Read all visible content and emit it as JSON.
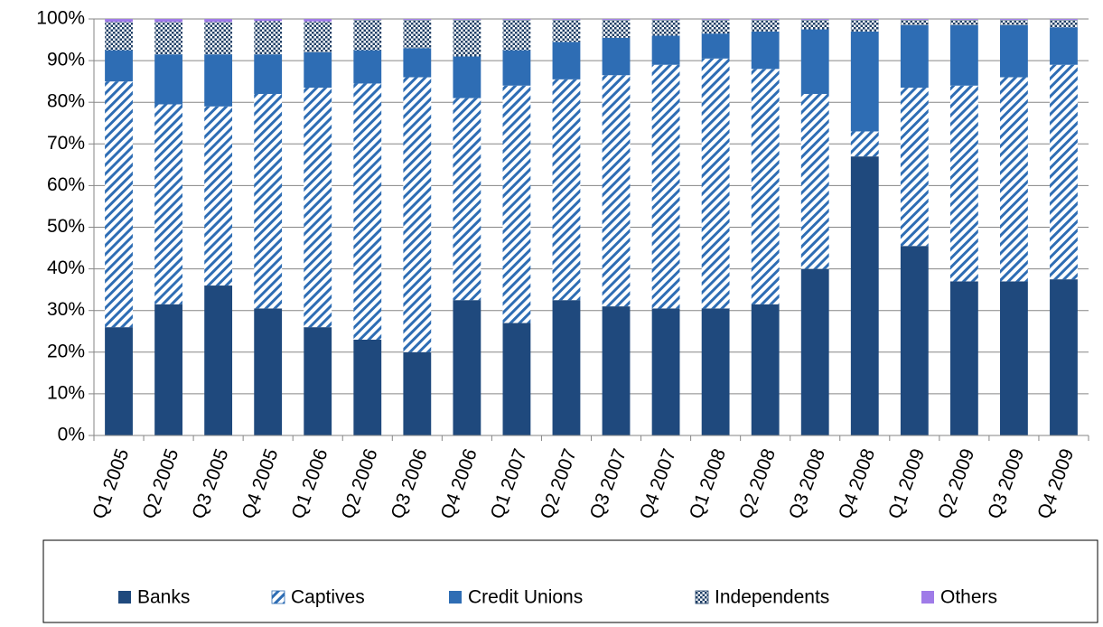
{
  "chart_data": {
    "type": "stacked_bar_percent",
    "categories": [
      "Q1 2005",
      "Q2 2005",
      "Q3 2005",
      "Q4 2005",
      "Q1 2006",
      "Q2 2006",
      "Q3 2006",
      "Q4 2006",
      "Q1 2007",
      "Q2 2007",
      "Q3 2007",
      "Q4 2007",
      "Q1 2008",
      "Q2 2008",
      "Q3 2008",
      "Q4 2008",
      "Q1 2009",
      "Q2 2009",
      "Q3 2009",
      "Q4 2009"
    ],
    "series": [
      {
        "name": "Banks",
        "color": "#1f497d",
        "pattern": "solid",
        "values": [
          26,
          31.5,
          36,
          30.5,
          26,
          23,
          20,
          32.5,
          27,
          32.5,
          31,
          30.5,
          30.5,
          31.5,
          40,
          67,
          45.5,
          37,
          37,
          37.5
        ]
      },
      {
        "name": "Captives",
        "color": "#2e6db4",
        "pattern": "diagonal",
        "values": [
          59,
          48,
          43,
          51.5,
          57.5,
          61.5,
          66,
          48.5,
          57,
          53,
          55.5,
          58.5,
          60,
          56.5,
          42,
          6,
          38,
          47,
          49,
          51.5
        ]
      },
      {
        "name": "Credit Unions",
        "color": "#2e6db4",
        "pattern": "solid",
        "values": [
          7.5,
          12,
          12.5,
          9.5,
          8.5,
          8,
          7,
          10,
          8.5,
          9,
          9,
          7,
          6,
          9,
          15.5,
          24,
          15,
          14.5,
          12.5,
          9
        ]
      },
      {
        "name": "Independents",
        "color": "#1f3f66",
        "pattern": "dots",
        "values": [
          6.8,
          7.8,
          7.8,
          8,
          7.4,
          7.3,
          6.8,
          8.8,
          7.3,
          5.3,
          4.3,
          3.8,
          3.3,
          2.8,
          2.3,
          2.8,
          1.3,
          1.3,
          1.3,
          1.8
        ]
      },
      {
        "name": "Others",
        "color": "#9f7be8",
        "pattern": "solid",
        "values": [
          0.7,
          0.7,
          0.7,
          0.5,
          0.6,
          0.2,
          0.2,
          0.2,
          0.2,
          0.2,
          0.2,
          0.2,
          0.2,
          0.2,
          0.2,
          0.2,
          0.2,
          0.2,
          0.2,
          0.2
        ]
      }
    ],
    "ylim": [
      0,
      100
    ],
    "yticks": [
      {
        "value": 0,
        "label": "0%"
      },
      {
        "value": 10,
        "label": "10%"
      },
      {
        "value": 20,
        "label": "20%"
      },
      {
        "value": 30,
        "label": "30%"
      },
      {
        "value": 40,
        "label": "40%"
      },
      {
        "value": 50,
        "label": "50%"
      },
      {
        "value": 60,
        "label": "60%"
      },
      {
        "value": 70,
        "label": "70%"
      },
      {
        "value": 80,
        "label": "80%"
      },
      {
        "value": 90,
        "label": "90%"
      },
      {
        "value": 100,
        "label": "100%"
      }
    ],
    "grid": true,
    "legend": "bottom"
  }
}
